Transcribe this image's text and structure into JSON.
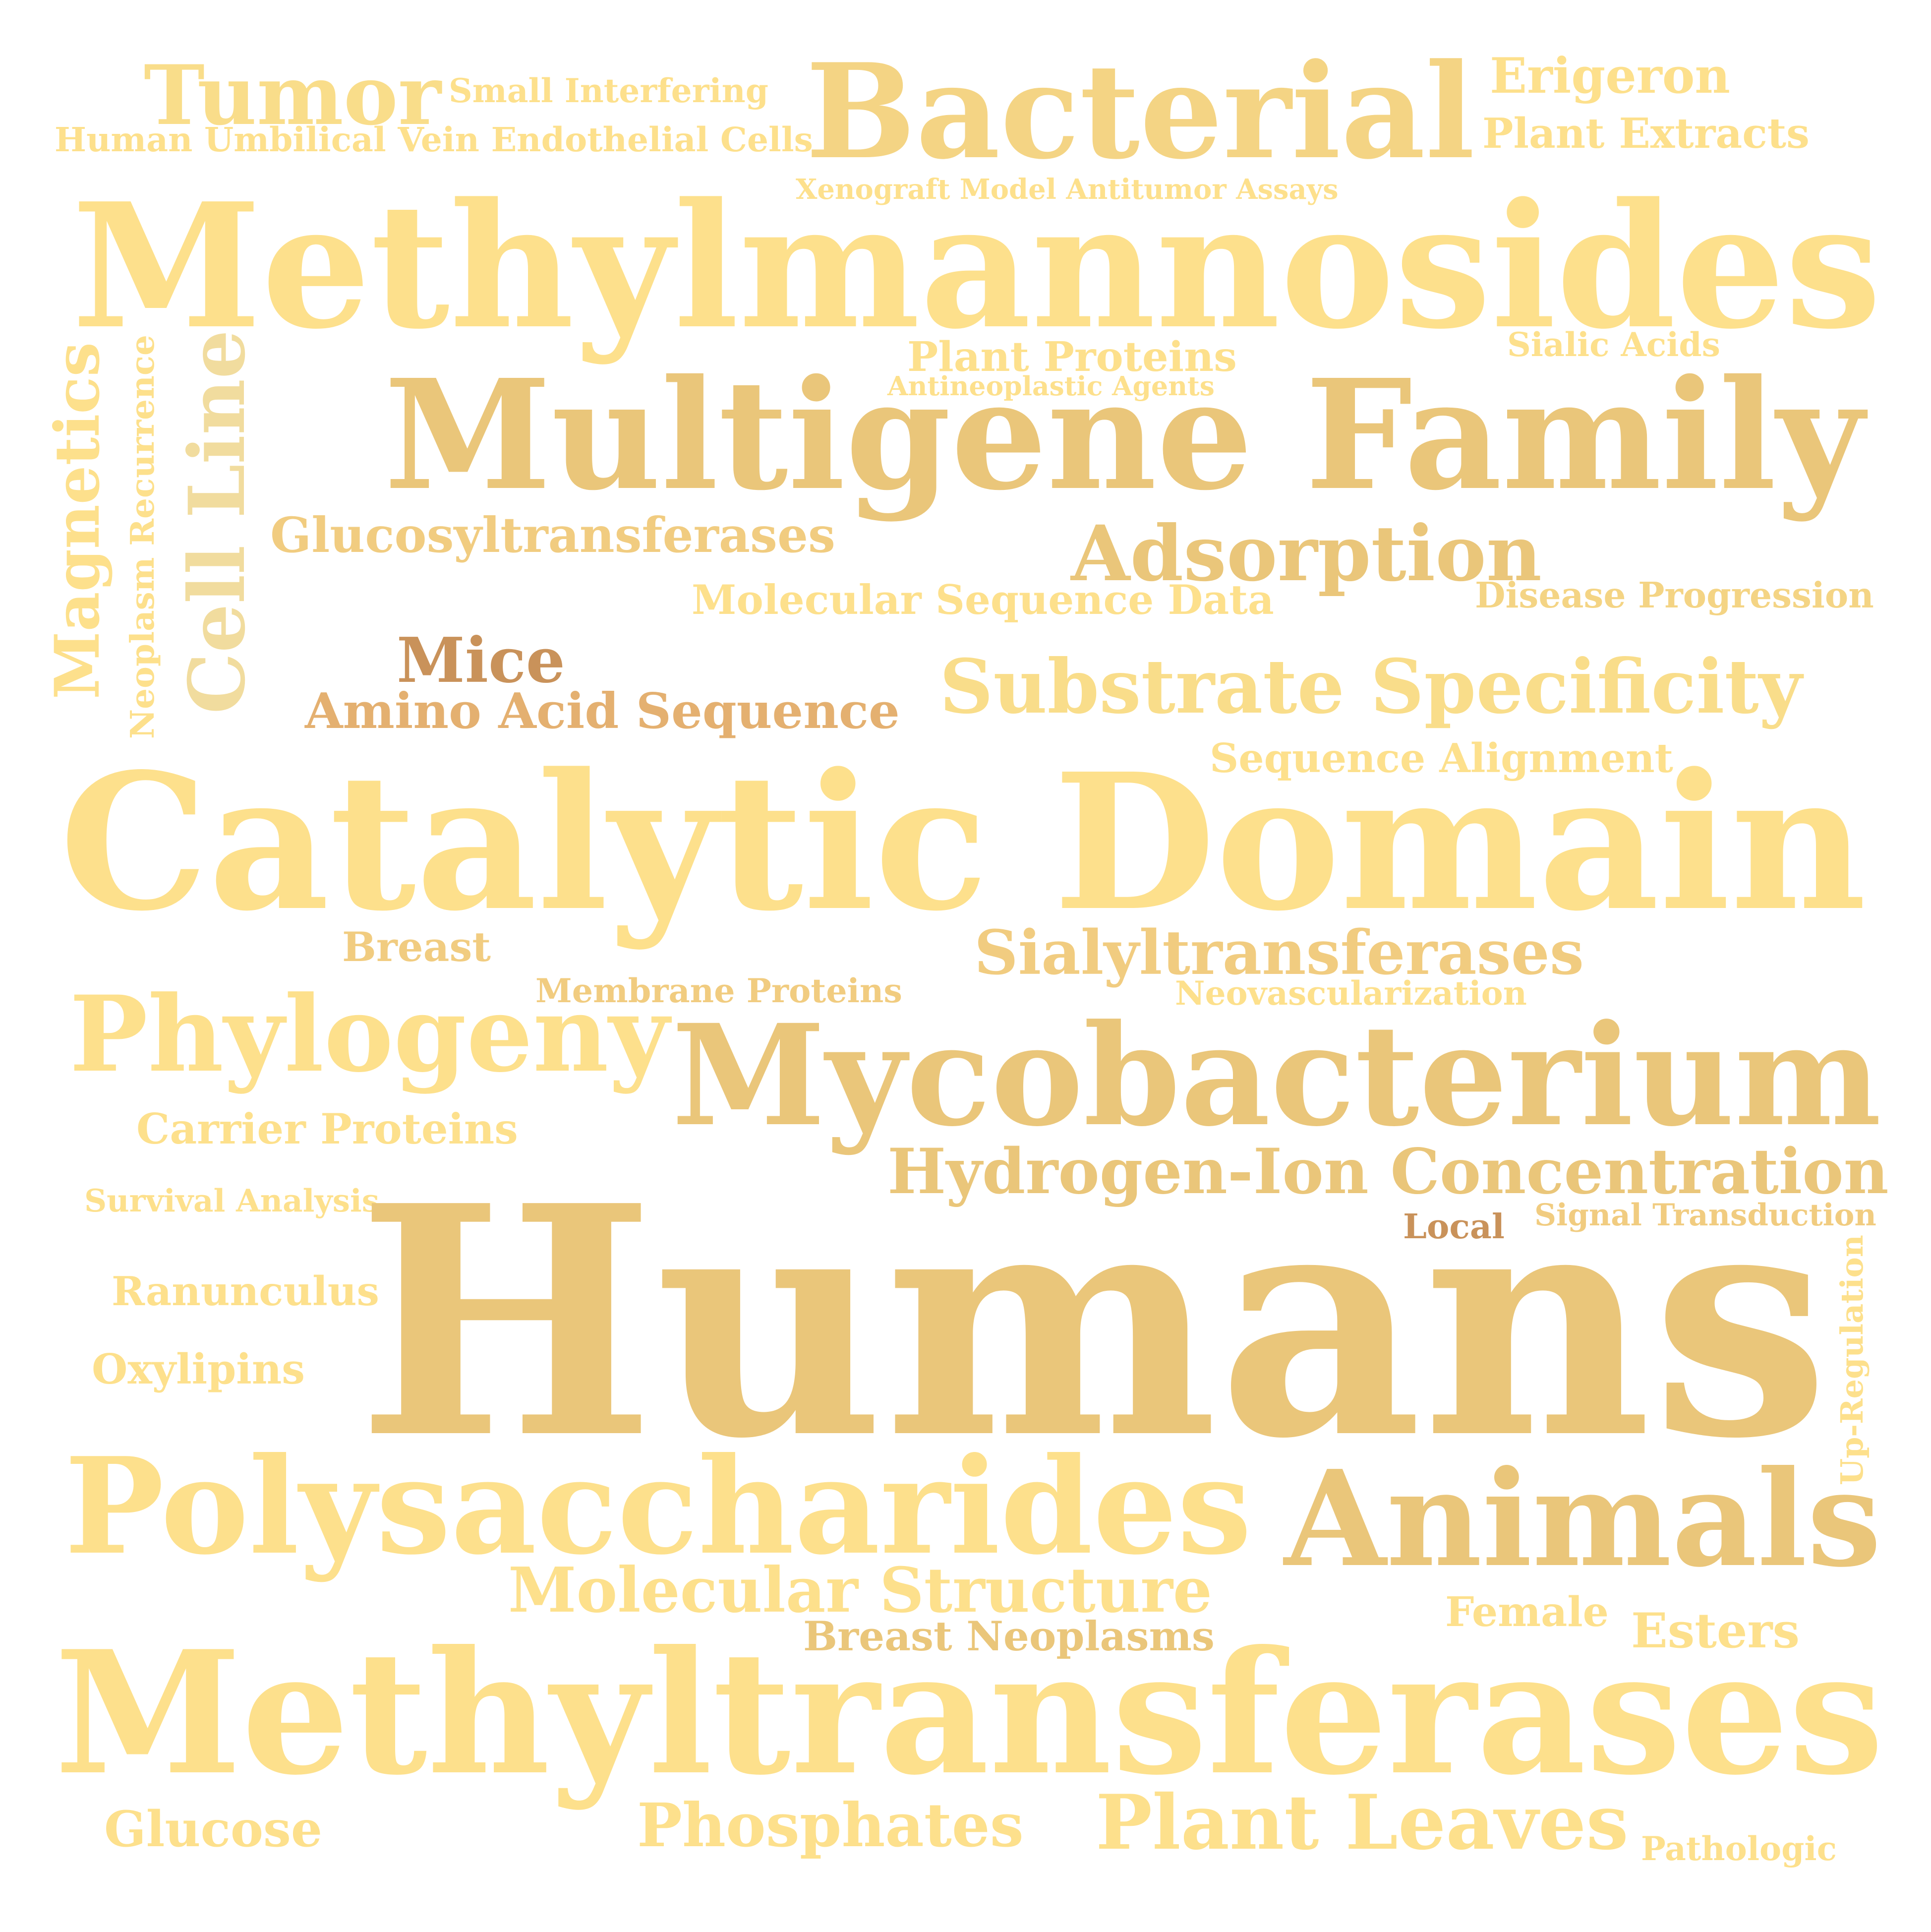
{
  "colors": {
    "background": "#ffffff",
    "light": "#fde08c",
    "pale": "#f9dd8a",
    "mid": "#f4d484",
    "gold": "#eac67a",
    "amber": "#e4b070",
    "brown": "#c9925a"
  },
  "words": [
    {
      "text": "Tumor",
      "color": "#f9dd8a"
    },
    {
      "text": "Small Interfering",
      "color": "#fde08c"
    },
    {
      "text": "Bacterial",
      "color": "#f4d484"
    },
    {
      "text": "Erigeron",
      "color": "#fde08c"
    },
    {
      "text": "Human Umbilical Vein Endothelial Cells",
      "color": "#fde08c"
    },
    {
      "text": "Plant Extracts",
      "color": "#fde08c"
    },
    {
      "text": "Xenograft Model Antitumor Assays",
      "color": "#fde08c"
    },
    {
      "text": "Methylmannosides",
      "color": "#fde08c"
    },
    {
      "text": "Plant Proteins",
      "color": "#fde08c"
    },
    {
      "text": "Sialic Acids",
      "color": "#fde08c"
    },
    {
      "text": "Antineoplastic Agents",
      "color": "#fde08c"
    },
    {
      "text": "Magnetics",
      "color": "#fde08c"
    },
    {
      "text": "Neoplasm Recurrence",
      "color": "#fde08c"
    },
    {
      "text": "Cell Line",
      "color": "#f1dc9e"
    },
    {
      "text": "Multigene Family",
      "color": "#eac67a"
    },
    {
      "text": "Glucosyltransferases",
      "color": "#f1cc80"
    },
    {
      "text": "Adsorption",
      "color": "#eac67a"
    },
    {
      "text": "Molecular Sequence Data",
      "color": "#fde08c"
    },
    {
      "text": "Disease Progression",
      "color": "#f4d484"
    },
    {
      "text": "Mice",
      "color": "#c9925a"
    },
    {
      "text": "Amino Acid Sequence",
      "color": "#e4b070"
    },
    {
      "text": "Substrate Specificity",
      "color": "#f9dd8a"
    },
    {
      "text": "Sequence Alignment",
      "color": "#fde08c"
    },
    {
      "text": "Catalytic Domain",
      "color": "#fde08c"
    },
    {
      "text": "Breast",
      "color": "#f1cc80"
    },
    {
      "text": "Sialyltransferases",
      "color": "#f1cc80"
    },
    {
      "text": "Membrane Proteins",
      "color": "#f1cc80"
    },
    {
      "text": "Neovascularization",
      "color": "#fde08c"
    },
    {
      "text": "Phylogeny",
      "color": "#fde08c"
    },
    {
      "text": "Mycobacterium",
      "color": "#eac67a"
    },
    {
      "text": "Carrier Proteins",
      "color": "#fde08c"
    },
    {
      "text": "Hydrogen-Ion Concentration",
      "color": "#eac67a"
    },
    {
      "text": "Survival Analysis",
      "color": "#fde08c"
    },
    {
      "text": "Humans",
      "color": "#eac67a"
    },
    {
      "text": "Local",
      "color": "#c9925a"
    },
    {
      "text": "Signal Transduction",
      "color": "#f1cc80"
    },
    {
      "text": "Ranunculus",
      "color": "#fde08c"
    },
    {
      "text": "Up-Regulation",
      "color": "#fde08c"
    },
    {
      "text": "Oxylipins",
      "color": "#fde08c"
    },
    {
      "text": "Polysaccharides",
      "color": "#fde08c"
    },
    {
      "text": "Animals",
      "color": "#eac67a"
    },
    {
      "text": "Molecular Structure",
      "color": "#fde08c"
    },
    {
      "text": "Female",
      "color": "#fde08c"
    },
    {
      "text": "Esters",
      "color": "#fde08c"
    },
    {
      "text": "Breast Neoplasms",
      "color": "#eac67a"
    },
    {
      "text": "Methyltransferases",
      "color": "#fde08c"
    },
    {
      "text": "Glucose",
      "color": "#fde08c"
    },
    {
      "text": "Phosphates",
      "color": "#fde08c"
    },
    {
      "text": "Plant Leaves",
      "color": "#fde08c"
    },
    {
      "text": "Pathologic",
      "color": "#fde08c"
    }
  ]
}
